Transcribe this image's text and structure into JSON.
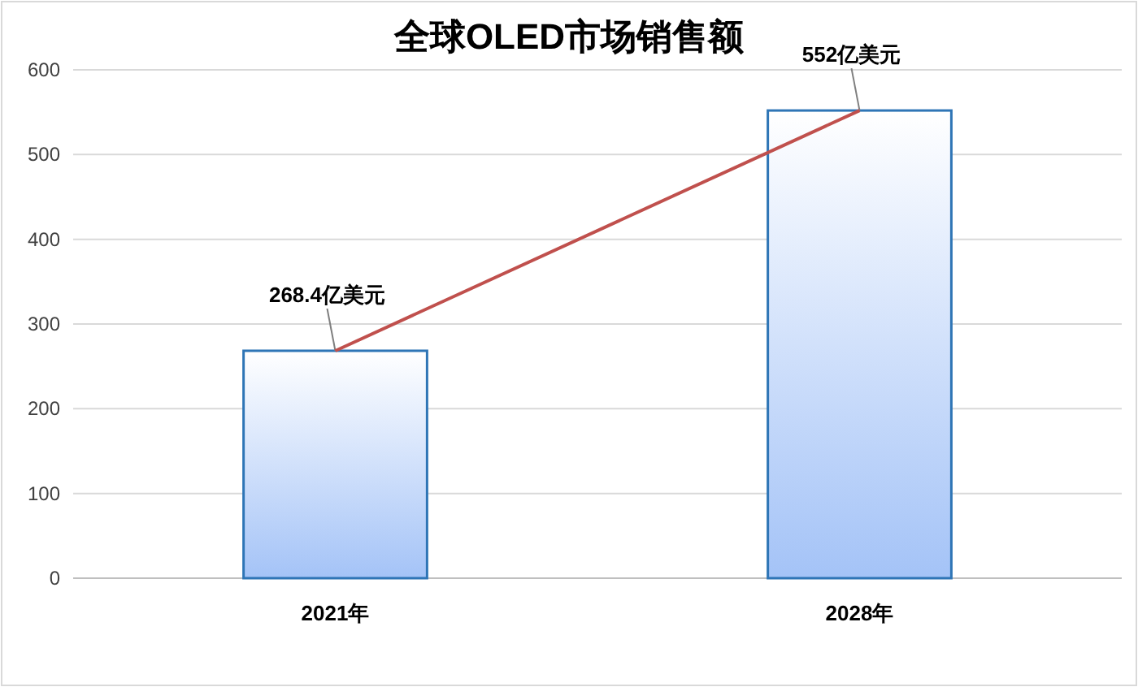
{
  "chart_data": {
    "type": "bar",
    "title": "全球OLED市场销售额",
    "categories": [
      "2021年",
      "2028年"
    ],
    "series": [
      {
        "color": "#2e75b6",
        "values": [
          268.4,
          552
        ],
        "value_labels": [
          "268.4亿美元",
          "552亿美元"
        ]
      },
      {
        "type": "line",
        "color": "#c0504d",
        "values": [
          268.4,
          552
        ]
      }
    ],
    "ylim": [
      0,
      600
    ],
    "yticks": [
      0,
      100,
      200,
      300,
      400,
      500,
      600
    ],
    "grid": "y"
  }
}
